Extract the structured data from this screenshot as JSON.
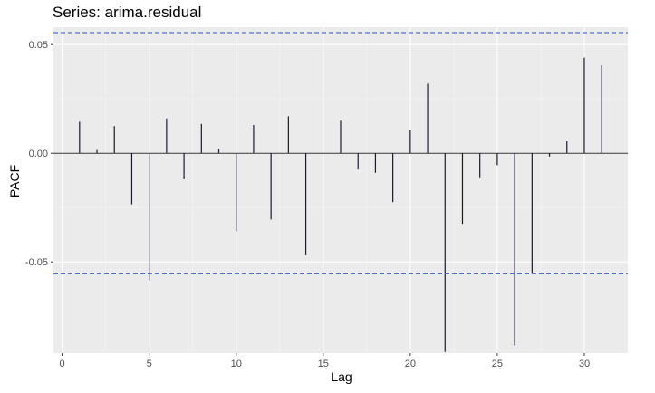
{
  "chart_data": {
    "type": "bar",
    "title": "Series: arima.residual",
    "xlabel": "Lag",
    "ylabel": "PACF",
    "xlim": [
      -0.5,
      32.5
    ],
    "ylim": [
      -0.092,
      0.058
    ],
    "x_ticks": [
      0,
      5,
      10,
      15,
      20,
      25,
      30
    ],
    "y_ticks": [
      0.05,
      0.0,
      -0.05
    ],
    "x_tick_labels": [
      "0",
      "5",
      "10",
      "15",
      "20",
      "25",
      "30"
    ],
    "y_tick_labels": [
      "0.05",
      "0.00",
      "-0.05"
    ],
    "grid": true,
    "confidence_bound": 0.0555,
    "lags": [
      1,
      2,
      3,
      4,
      5,
      6,
      7,
      8,
      9,
      10,
      11,
      12,
      13,
      14,
      15,
      16,
      17,
      18,
      19,
      20,
      21,
      22,
      23,
      24,
      25,
      26,
      27,
      28,
      29,
      30,
      31
    ],
    "values": [
      0.0145,
      0.0015,
      0.0125,
      -0.0235,
      -0.0585,
      0.016,
      -0.012,
      0.0135,
      0.002,
      -0.036,
      0.013,
      -0.0305,
      0.017,
      -0.047,
      0.0,
      0.015,
      -0.0075,
      -0.009,
      -0.0225,
      0.0105,
      0.032,
      -0.0915,
      -0.0325,
      -0.0115,
      -0.0055,
      -0.0885,
      -0.055,
      -0.0015,
      0.0055,
      0.044,
      0.0405
    ]
  },
  "colors": {
    "panel": "#ebebeb",
    "grid_major": "#ffffff",
    "grid_minor": "#f5f5f5",
    "bar": "#1a1a2e",
    "bound": "#4a6fd4"
  }
}
